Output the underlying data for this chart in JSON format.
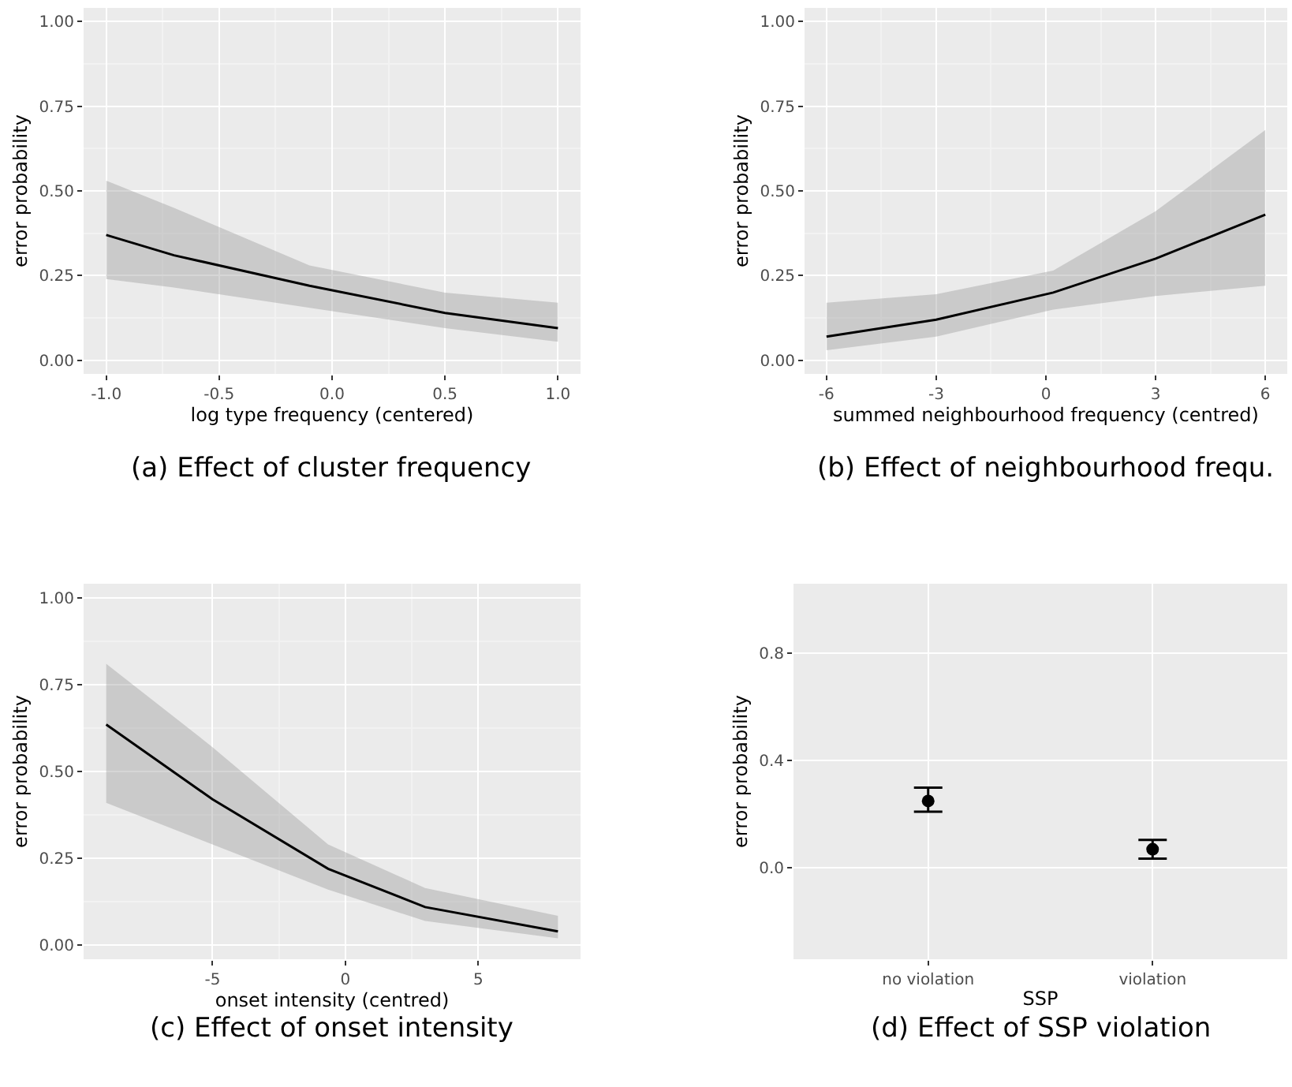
{
  "chart_data": [
    {
      "type": "line",
      "title": "(a) Effect of cluster frequency",
      "xlabel": "log type frequency (centered)",
      "ylabel": "error probability",
      "grid": true,
      "x": [
        -1,
        -0.7,
        -0.1,
        0.5,
        1
      ],
      "series": [
        {
          "color": "#000000",
          "values": [
            0.37,
            0.31,
            0.22,
            0.14,
            0.095
          ],
          "lower": [
            0.24,
            0.215,
            0.155,
            0.095,
            0.055
          ],
          "upper": [
            0.53,
            0.45,
            0.28,
            0.2,
            0.17
          ]
        }
      ],
      "xlim": [
        -1.1,
        1.1
      ],
      "xticks": [
        {
          "value": -1,
          "label": "-1.0"
        },
        {
          "value": -0.5,
          "label": "-0.5"
        },
        {
          "value": 0,
          "label": "0.0"
        },
        {
          "value": 0.5,
          "label": "0.5"
        },
        {
          "value": 1,
          "label": "1.0"
        }
      ],
      "ylim": [
        -0.04,
        1.04
      ],
      "yticks": [
        {
          "value": 0,
          "label": "0.00"
        },
        {
          "value": 0.25,
          "label": "0.25"
        },
        {
          "value": 0.5,
          "label": "0.50"
        },
        {
          "value": 0.75,
          "label": "0.75"
        },
        {
          "value": 1,
          "label": "1.00"
        }
      ]
    },
    {
      "type": "line",
      "title": "(b) Effect of neighbourhood frequ.",
      "xlabel": "summed neighbourhood frequency (centred)",
      "ylabel": "error probability",
      "grid": true,
      "x": [
        -6,
        -3,
        0.2,
        3,
        6
      ],
      "series": [
        {
          "color": "#000000",
          "values": [
            0.07,
            0.12,
            0.2,
            0.3,
            0.43
          ],
          "lower": [
            0.03,
            0.07,
            0.15,
            0.19,
            0.22
          ],
          "upper": [
            0.17,
            0.195,
            0.265,
            0.44,
            0.68
          ]
        }
      ],
      "xlim": [
        -6.6,
        6.6
      ],
      "xticks": [
        -6,
        -3,
        0,
        3,
        6
      ],
      "ylim": [
        -0.04,
        1.04
      ],
      "yticks": [
        {
          "value": 0,
          "label": "0.00"
        },
        {
          "value": 0.25,
          "label": "0.25"
        },
        {
          "value": 0.5,
          "label": "0.50"
        },
        {
          "value": 0.75,
          "label": "0.75"
        },
        {
          "value": 1,
          "label": "1.00"
        }
      ]
    },
    {
      "type": "line",
      "title": "(c) Effect of onset intensity",
      "xlabel": "onset intensity (centred)",
      "ylabel": "error probability",
      "grid": true,
      "x": [
        -9,
        -5,
        -0.65,
        3,
        8
      ],
      "series": [
        {
          "color": "#000000",
          "values": [
            0.635,
            0.42,
            0.22,
            0.11,
            0.04
          ],
          "lower": [
            0.41,
            0.29,
            0.16,
            0.07,
            0.02
          ],
          "upper": [
            0.81,
            0.57,
            0.29,
            0.165,
            0.085
          ]
        }
      ],
      "xlim": [
        -9.85,
        8.85
      ],
      "xticks": [
        -5,
        0,
        5
      ],
      "ylim": [
        -0.04,
        1.04
      ],
      "yticks": [
        {
          "value": 0,
          "label": "0.00"
        },
        {
          "value": 0.25,
          "label": "0.25"
        },
        {
          "value": 0.5,
          "label": "0.50"
        },
        {
          "value": 0.75,
          "label": "0.75"
        },
        {
          "value": 1,
          "label": "1.00"
        }
      ]
    },
    {
      "type": "scatter",
      "title": "(d) Effect of SSP violation",
      "xlabel": "SSP",
      "ylabel": "error probability",
      "grid": true,
      "marker": "circle",
      "categories": [
        "no violation",
        "violation"
      ],
      "series": [
        {
          "color": "#000000",
          "values": [
            0.25,
            0.07
          ],
          "errors": [
            [
              0.21,
              0.3
            ],
            [
              0.035,
              0.105
            ]
          ]
        }
      ],
      "ylim": [
        -0.34,
        1.06
      ],
      "yticks": [
        {
          "value": 0,
          "label": "0.0"
        },
        {
          "value": 0.4,
          "label": "0.4"
        },
        {
          "value": 0.8,
          "label": "0.8"
        }
      ]
    }
  ]
}
